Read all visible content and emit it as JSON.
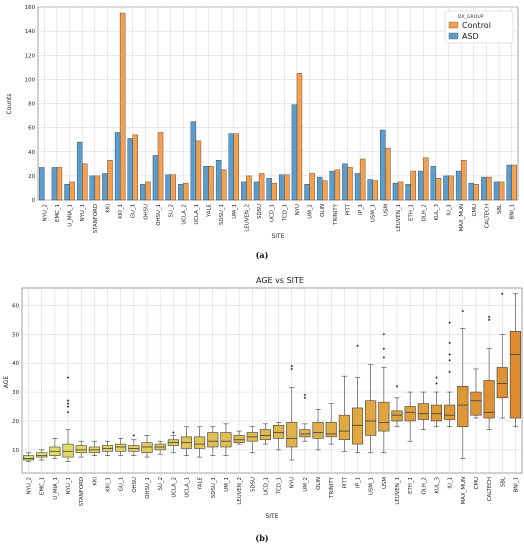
{
  "chart_data": [
    {
      "type": "bar",
      "xlabel": "SITE",
      "ylabel": "Counts",
      "ylim": [
        0,
        160
      ],
      "yticks": [
        0,
        20,
        40,
        60,
        80,
        100,
        120,
        140,
        160
      ],
      "grid": true,
      "legend": {
        "title": "DX_GROUP",
        "position": "top-right"
      },
      "panel_label": "(a)",
      "categories": [
        "NYU_2",
        "EMC_1",
        "U_MIA_1",
        "NYU_1",
        "STANFORD",
        "KKI",
        "KKI_1",
        "GU_1",
        "OHSU",
        "OHSU_1",
        "SU_2",
        "UCLA_2",
        "UCLA_1",
        "YALE",
        "SDSU_1",
        "UM_1",
        "LEUVEN_2",
        "SDSU",
        "UCD_1",
        "TCD_1",
        "NYU",
        "UM_2",
        "OLIN",
        "TRINITY",
        "PITT",
        "IP_1",
        "USM_1",
        "USM",
        "LEUVEN_1",
        "ETH_1",
        "OLH_2",
        "KUL_3",
        "IU_1",
        "MAX_MUN",
        "CMU",
        "CALTECH",
        "SBL",
        "BNI_1"
      ],
      "series": [
        {
          "name": "Control",
          "color": "#F5A04E",
          "values": [
            0,
            27,
            15,
            30,
            20,
            33,
            155,
            54,
            15,
            56,
            21,
            14,
            49,
            28,
            25,
            55,
            20,
            22,
            14,
            21,
            105,
            22,
            16,
            25,
            27,
            34,
            16,
            43,
            15,
            24,
            35,
            18,
            20,
            33,
            13,
            19,
            15,
            29
          ]
        },
        {
          "name": "ASD",
          "color": "#5A9ECF",
          "values": [
            27,
            27,
            13,
            48,
            20,
            22,
            56,
            51,
            13,
            37,
            21,
            13,
            65,
            28,
            33,
            55,
            15,
            15,
            18,
            21,
            79,
            13,
            19,
            24,
            30,
            22,
            17,
            58,
            14,
            13,
            24,
            28,
            20,
            24,
            14,
            19,
            15,
            29
          ]
        }
      ]
    },
    {
      "type": "box",
      "title": "AGE vs SITE",
      "xlabel": "SITE",
      "ylabel": "AGE",
      "ylim": [
        2,
        66
      ],
      "yticks": [
        10,
        20,
        30,
        40,
        50,
        60
      ],
      "grid": true,
      "panel_label": "(b)",
      "categories": [
        "NYU_2",
        "EMC_1",
        "U_MIA_1",
        "NYU_1",
        "STANFORD",
        "KKI",
        "KKI_1",
        "GU_1",
        "OHSU",
        "OHSU_1",
        "SU_2",
        "UCLA_2",
        "UCLA_1",
        "YALE",
        "SDSU_1",
        "UM_1",
        "LEUVEN_2",
        "SDSU",
        "UCD_1",
        "TCD_1",
        "NYU",
        "UM_2",
        "OLIN",
        "TRINITY",
        "PITT",
        "IP_1",
        "USM_1",
        "USM",
        "LEUVEN_1",
        "ETH_1",
        "OLH_2",
        "KUL_3",
        "IU_1",
        "MAX_MUN",
        "CMU",
        "CALTECH",
        "SBL",
        "BNI_1"
      ],
      "boxes": [
        {
          "min": 6,
          "q1": 6.5,
          "median": 7,
          "q3": 8,
          "max": 9,
          "outliers": []
        },
        {
          "min": 6.5,
          "q1": 7.5,
          "median": 8,
          "q3": 9,
          "max": 10,
          "outliers": []
        },
        {
          "min": 7,
          "q1": 8,
          "median": 9.5,
          "q3": 11,
          "max": 14,
          "outliers": []
        },
        {
          "min": 6,
          "q1": 7.5,
          "median": 9.5,
          "q3": 12,
          "max": 17,
          "outliers": [
            23,
            25,
            26,
            27,
            35
          ]
        },
        {
          "min": 7.5,
          "q1": 9,
          "median": 10,
          "q3": 11.5,
          "max": 13,
          "outliers": []
        },
        {
          "min": 8,
          "q1": 9,
          "median": 10,
          "q3": 11,
          "max": 13,
          "outliers": []
        },
        {
          "min": 8,
          "q1": 9.5,
          "median": 10.5,
          "q3": 11.5,
          "max": 13,
          "outliers": []
        },
        {
          "min": 8,
          "q1": 9.5,
          "median": 11,
          "q3": 12,
          "max": 14,
          "outliers": []
        },
        {
          "min": 8,
          "q1": 9.5,
          "median": 10.5,
          "q3": 11.5,
          "max": 13.5,
          "outliers": [
            15
          ]
        },
        {
          "min": 7.5,
          "q1": 9,
          "median": 11,
          "q3": 12.5,
          "max": 15,
          "outliers": []
        },
        {
          "min": 8.5,
          "q1": 10,
          "median": 11,
          "q3": 12,
          "max": 13,
          "outliers": []
        },
        {
          "min": 9,
          "q1": 11.5,
          "median": 12.5,
          "q3": 13.5,
          "max": 15,
          "outliers": [
            16
          ]
        },
        {
          "min": 8,
          "q1": 10.5,
          "median": 12.5,
          "q3": 14.5,
          "max": 18,
          "outliers": []
        },
        {
          "min": 7.5,
          "q1": 10.5,
          "median": 12,
          "q3": 14.5,
          "max": 18,
          "outliers": []
        },
        {
          "min": 8,
          "q1": 11,
          "median": 13,
          "q3": 16,
          "max": 18,
          "outliers": []
        },
        {
          "min": 8,
          "q1": 11,
          "median": 13,
          "q3": 16,
          "max": 19,
          "outliers": []
        },
        {
          "min": 12,
          "q1": 12.5,
          "median": 13.5,
          "q3": 15,
          "max": 16.5,
          "outliers": []
        },
        {
          "min": 9,
          "q1": 13,
          "median": 14.5,
          "q3": 16,
          "max": 18,
          "outliers": []
        },
        {
          "min": 12,
          "q1": 13.5,
          "median": 15,
          "q3": 17,
          "max": 19,
          "outliers": []
        },
        {
          "min": 10,
          "q1": 14,
          "median": 16,
          "q3": 18.5,
          "max": 19.5,
          "outliers": []
        },
        {
          "min": 6.5,
          "q1": 11,
          "median": 14,
          "q3": 19.5,
          "max": 31.5,
          "outliers": [
            38,
            39
          ]
        },
        {
          "min": 13,
          "q1": 14.5,
          "median": 15.5,
          "q3": 17,
          "max": 19,
          "outliers": [
            28,
            29
          ]
        },
        {
          "min": 10,
          "q1": 14,
          "median": 16,
          "q3": 19.5,
          "max": 24,
          "outliers": []
        },
        {
          "min": 12,
          "q1": 14.5,
          "median": 15.5,
          "q3": 19.5,
          "max": 26,
          "outliers": []
        },
        {
          "min": 9.5,
          "q1": 13.5,
          "median": 16.5,
          "q3": 22,
          "max": 35.5,
          "outliers": []
        },
        {
          "min": 9,
          "q1": 12,
          "median": 18.5,
          "q3": 24.5,
          "max": 35,
          "outliers": [
            46
          ]
        },
        {
          "min": 9,
          "q1": 15,
          "median": 20,
          "q3": 27,
          "max": 39.5,
          "outliers": []
        },
        {
          "min": 9,
          "q1": 16.5,
          "median": 19.5,
          "q3": 26.5,
          "max": 38.5,
          "outliers": [
            42,
            45,
            50
          ]
        },
        {
          "min": 18,
          "q1": 20,
          "median": 22,
          "q3": 23.5,
          "max": 28,
          "outliers": [
            32
          ]
        },
        {
          "min": 13,
          "q1": 20,
          "median": 23,
          "q3": 25,
          "max": 30,
          "outliers": []
        },
        {
          "min": 17,
          "q1": 20.5,
          "median": 22.5,
          "q3": 26,
          "max": 30,
          "outliers": []
        },
        {
          "min": 18,
          "q1": 20,
          "median": 22.5,
          "q3": 25.5,
          "max": 30,
          "outliers": [
            33,
            35
          ]
        },
        {
          "min": 18,
          "q1": 20.5,
          "median": 22,
          "q3": 25.5,
          "max": 30,
          "outliers": [
            37,
            41,
            43,
            47,
            54
          ]
        },
        {
          "min": 7,
          "q1": 18,
          "median": 25.5,
          "q3": 32,
          "max": 52,
          "outliers": [
            58
          ]
        },
        {
          "min": 21,
          "q1": 22,
          "median": 27,
          "q3": 30,
          "max": 38,
          "outliers": []
        },
        {
          "min": 17,
          "q1": 21,
          "median": 23,
          "q3": 34,
          "max": 45,
          "outliers": [
            55,
            56
          ]
        },
        {
          "min": 21,
          "q1": 28,
          "median": 33,
          "q3": 38.5,
          "max": 50,
          "outliers": [
            64
          ]
        },
        {
          "min": 18,
          "q1": 21,
          "median": 43,
          "q3": 51,
          "max": 64,
          "outliers": []
        }
      ]
    }
  ]
}
